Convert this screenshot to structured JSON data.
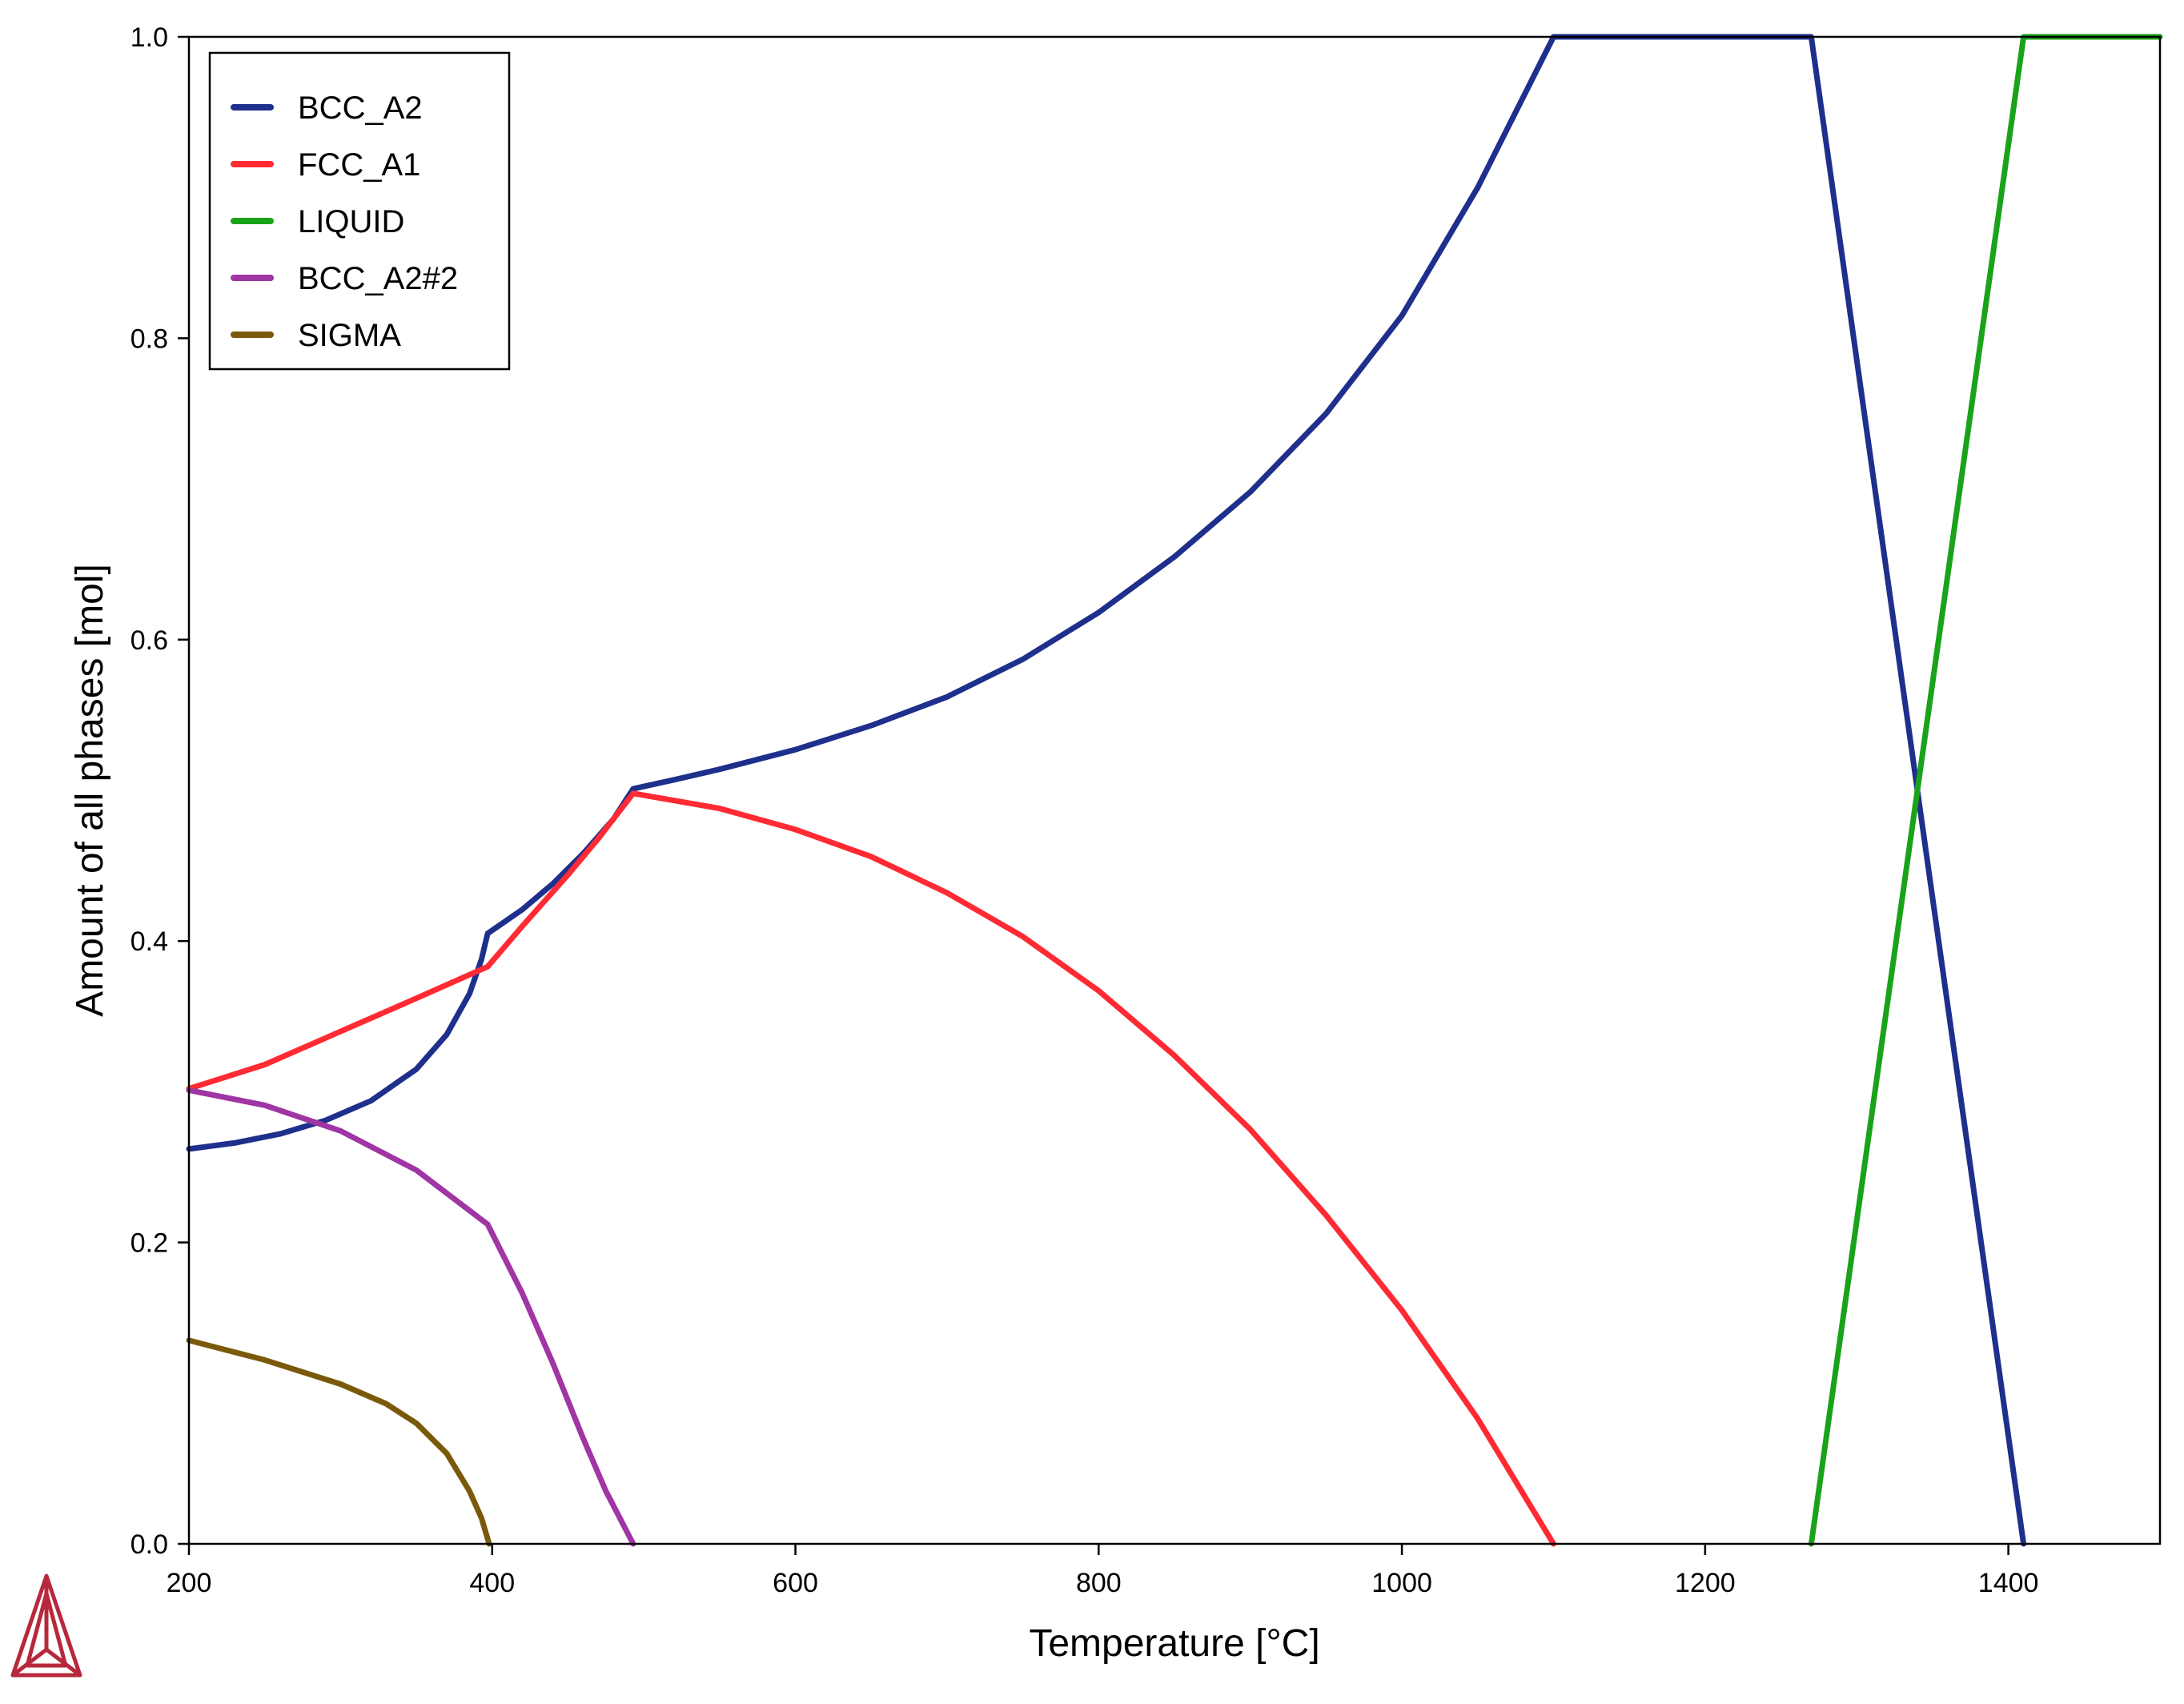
{
  "chart_data": {
    "type": "line",
    "xlabel": "Temperature [°C]",
    "ylabel": "Amount of all phases [mol]",
    "xlim": [
      200,
      1500
    ],
    "ylim": [
      0,
      1.0
    ],
    "x_ticks": [
      200,
      400,
      600,
      800,
      1000,
      1200,
      1400
    ],
    "y_ticks": [
      "0.0",
      "0.2",
      "0.4",
      "0.6",
      "0.8",
      "1.0"
    ],
    "grid": false,
    "legend_position": "top-left",
    "series": [
      {
        "name": "BCC_A2",
        "color": "#1f2f8c",
        "points": [
          [
            200,
            0.262
          ],
          [
            230,
            0.266
          ],
          [
            260,
            0.272
          ],
          [
            290,
            0.281
          ],
          [
            320,
            0.294
          ],
          [
            350,
            0.315
          ],
          [
            370,
            0.338
          ],
          [
            385,
            0.365
          ],
          [
            393,
            0.388
          ],
          [
            397,
            0.405
          ],
          [
            420,
            0.421
          ],
          [
            440,
            0.438
          ],
          [
            460,
            0.458
          ],
          [
            480,
            0.481
          ],
          [
            493,
            0.501
          ],
          [
            520,
            0.507
          ],
          [
            550,
            0.514
          ],
          [
            600,
            0.527
          ],
          [
            650,
            0.543
          ],
          [
            700,
            0.562
          ],
          [
            750,
            0.587
          ],
          [
            800,
            0.618
          ],
          [
            850,
            0.655
          ],
          [
            900,
            0.698
          ],
          [
            950,
            0.75
          ],
          [
            1000,
            0.815
          ],
          [
            1050,
            0.9
          ],
          [
            1100,
            1.0
          ],
          [
            1270,
            1.0
          ],
          [
            1410,
            0.0
          ]
        ]
      },
      {
        "name": "FCC_A1",
        "color": "#ff2a33",
        "points": [
          [
            200,
            0.302
          ],
          [
            250,
            0.318
          ],
          [
            300,
            0.34
          ],
          [
            350,
            0.362
          ],
          [
            397,
            0.383
          ],
          [
            420,
            0.41
          ],
          [
            450,
            0.444
          ],
          [
            470,
            0.468
          ],
          [
            493,
            0.498
          ],
          [
            550,
            0.488
          ],
          [
            600,
            0.474
          ],
          [
            650,
            0.456
          ],
          [
            700,
            0.432
          ],
          [
            750,
            0.403
          ],
          [
            800,
            0.367
          ],
          [
            850,
            0.324
          ],
          [
            900,
            0.275
          ],
          [
            950,
            0.218
          ],
          [
            1000,
            0.155
          ],
          [
            1050,
            0.083
          ],
          [
            1100,
            0.0
          ]
        ]
      },
      {
        "name": "LIQUID",
        "color": "#1aa31a",
        "points": [
          [
            1270,
            0.0
          ],
          [
            1410,
            1.0
          ],
          [
            1500,
            1.0
          ]
        ]
      },
      {
        "name": "BCC_A2#2",
        "color": "#a035a5",
        "points": [
          [
            200,
            0.301
          ],
          [
            250,
            0.291
          ],
          [
            300,
            0.274
          ],
          [
            350,
            0.248
          ],
          [
            397,
            0.212
          ],
          [
            420,
            0.166
          ],
          [
            440,
            0.12
          ],
          [
            460,
            0.07
          ],
          [
            475,
            0.035
          ],
          [
            493,
            0.0
          ]
        ]
      },
      {
        "name": "SIGMA",
        "color": "#7a5a0a",
        "points": [
          [
            200,
            0.135
          ],
          [
            250,
            0.122
          ],
          [
            300,
            0.106
          ],
          [
            330,
            0.093
          ],
          [
            350,
            0.08
          ],
          [
            370,
            0.06
          ],
          [
            385,
            0.035
          ],
          [
            393,
            0.017
          ],
          [
            398,
            0.0
          ]
        ]
      }
    ]
  }
}
